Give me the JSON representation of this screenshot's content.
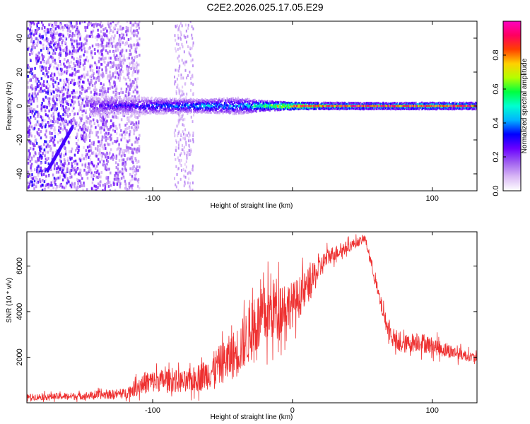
{
  "title": "C2E2.2026.025.17.05.E29",
  "chart_data": [
    {
      "type": "heatmap",
      "name": "spectrogram",
      "xlabel": "Height of straight line (km)",
      "ylabel": "Frequency (Hz)",
      "xlim": [
        -190,
        132
      ],
      "ylim": [
        -50,
        50
      ],
      "xticks": [
        -100,
        0,
        100
      ],
      "xtick_labels": [
        "-100",
        "",
        "100"
      ],
      "yticks": [
        -40,
        -20,
        0,
        20,
        40
      ],
      "ytick_labels": [
        "-40",
        "-20",
        "0",
        "20",
        "40"
      ],
      "colorbar": {
        "label": "Normalized spectral amplitude",
        "range": [
          0,
          1
        ],
        "ticks": [
          0.0,
          0.2,
          0.4,
          0.6,
          0.8
        ],
        "tick_labels": [
          "0.0",
          "0.2",
          "0.4",
          "0.6",
          "0.8"
        ],
        "colors": [
          "#ffffff",
          "#d9b8f5",
          "#a060f0",
          "#6a00ff",
          "#0000ff",
          "#00b4ff",
          "#00ffd0",
          "#00ff40",
          "#b4ff00",
          "#ffd000",
          "#ff4000",
          "#ff0060",
          "#ff00c0"
        ]
      },
      "band": {
        "frequency_center_hz": 0,
        "strong_from_km": -145,
        "noise_until_km": -110,
        "description_points": [
          {
            "x": -145,
            "halfwidth": 6,
            "amp": 0.25
          },
          {
            "x": -120,
            "halfwidth": 5,
            "amp": 0.3
          },
          {
            "x": -100,
            "halfwidth": 5,
            "amp": 0.35
          },
          {
            "x": -80,
            "halfwidth": 4,
            "amp": 0.4
          },
          {
            "x": -60,
            "halfwidth": 4,
            "amp": 0.45
          },
          {
            "x": -40,
            "halfwidth": 5,
            "amp": 0.4
          },
          {
            "x": -20,
            "halfwidth": 3,
            "amp": 0.6
          },
          {
            "x": 0,
            "halfwidth": 2,
            "amp": 0.8
          },
          {
            "x": 20,
            "halfwidth": 2,
            "amp": 0.6
          },
          {
            "x": 60,
            "halfwidth": 2,
            "amp": 0.55
          },
          {
            "x": 100,
            "halfwidth": 2,
            "amp": 0.6
          },
          {
            "x": 132,
            "halfwidth": 2,
            "amp": 0.55
          }
        ]
      }
    },
    {
      "type": "line",
      "name": "snr",
      "xlabel": "Height of straight line (km)",
      "ylabel": "SNR (10 * v/v)",
      "xlim": [
        -190,
        132
      ],
      "ylim": [
        0,
        7500
      ],
      "xticks": [
        -100,
        0,
        100
      ],
      "xtick_labels": [
        "-100",
        "0",
        "100"
      ],
      "yticks": [
        2000,
        4000,
        6000
      ],
      "ytick_labels": [
        "2000",
        "4000",
        "6000"
      ],
      "series": [
        {
          "name": "SNR",
          "color": "#ee3030",
          "envelope": [
            {
              "x": -190,
              "base": 250,
              "spread": 250
            },
            {
              "x": -150,
              "base": 300,
              "spread": 300
            },
            {
              "x": -120,
              "base": 400,
              "spread": 400
            },
            {
              "x": -105,
              "base": 900,
              "spread": 900
            },
            {
              "x": -90,
              "base": 1000,
              "spread": 900
            },
            {
              "x": -75,
              "base": 900,
              "spread": 900
            },
            {
              "x": -60,
              "base": 1300,
              "spread": 1300
            },
            {
              "x": -40,
              "base": 2200,
              "spread": 2000
            },
            {
              "x": -25,
              "base": 3500,
              "spread": 2500
            },
            {
              "x": -12,
              "base": 4200,
              "spread": 2500
            },
            {
              "x": 0,
              "base": 4300,
              "spread": 1800
            },
            {
              "x": 10,
              "base": 5000,
              "spread": 1500
            },
            {
              "x": 25,
              "base": 6400,
              "spread": 700
            },
            {
              "x": 45,
              "base": 7000,
              "spread": 400
            },
            {
              "x": 52,
              "base": 7200,
              "spread": 300
            },
            {
              "x": 58,
              "base": 5700,
              "spread": 500
            },
            {
              "x": 62,
              "base": 4600,
              "spread": 600
            },
            {
              "x": 68,
              "base": 3300,
              "spread": 700
            },
            {
              "x": 75,
              "base": 2500,
              "spread": 700
            },
            {
              "x": 90,
              "base": 2700,
              "spread": 800
            },
            {
              "x": 110,
              "base": 2300,
              "spread": 600
            },
            {
              "x": 132,
              "base": 1950,
              "spread": 350
            }
          ]
        }
      ]
    }
  ]
}
